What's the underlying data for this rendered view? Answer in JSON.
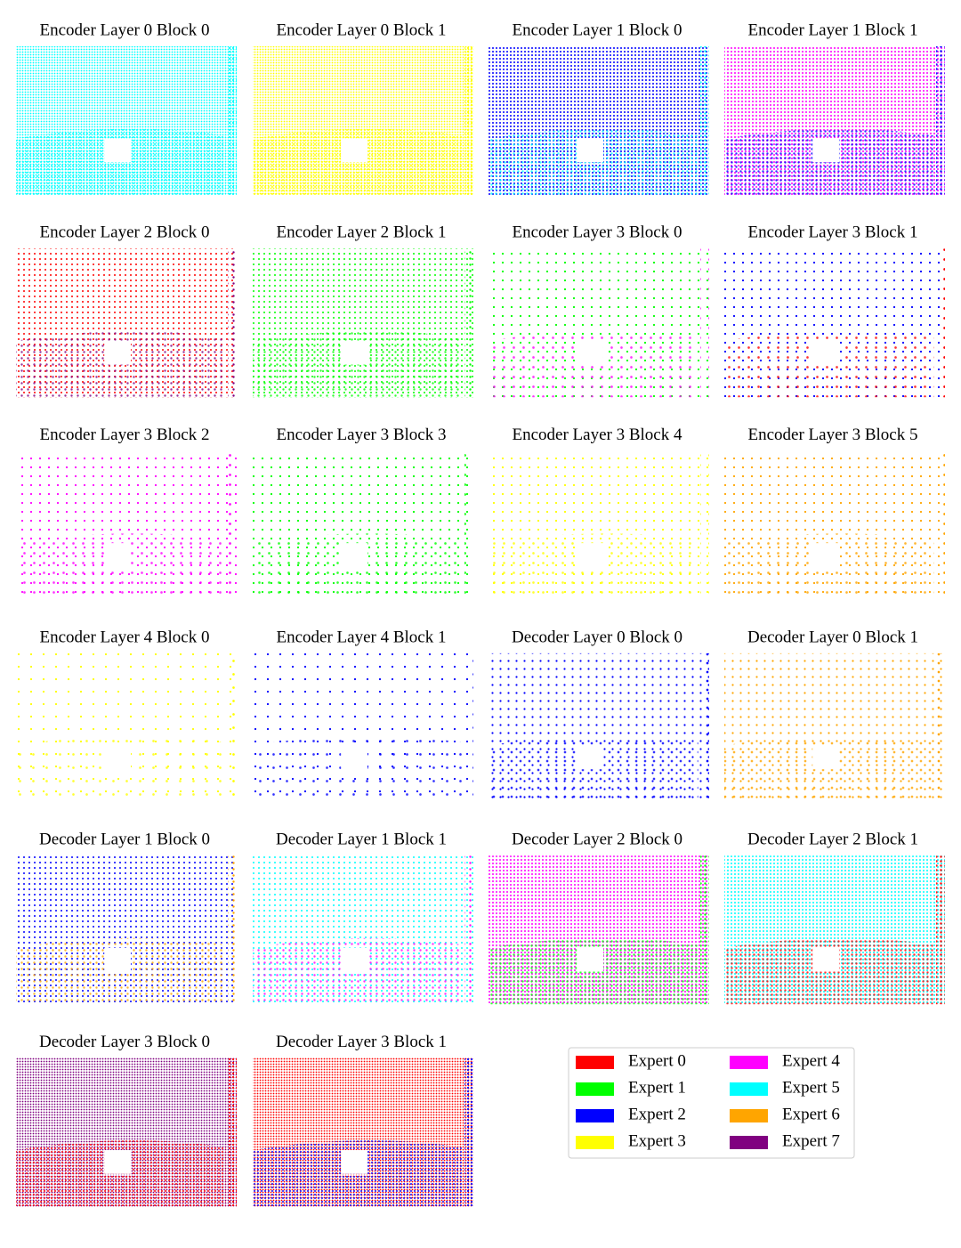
{
  "panels": [
    {
      "title": "Encoder Layer 0 Block 0"
    },
    {
      "title": "Encoder Layer 0 Block 1"
    },
    {
      "title": "Encoder Layer 1 Block 0"
    },
    {
      "title": "Encoder Layer 1 Block 1"
    },
    {
      "title": "Encoder Layer 2 Block 0"
    },
    {
      "title": "Encoder Layer 2 Block 1"
    },
    {
      "title": "Encoder Layer 3 Block 0"
    },
    {
      "title": "Encoder Layer 3 Block 1"
    },
    {
      "title": "Encoder Layer 3 Block 2"
    },
    {
      "title": "Encoder Layer 3 Block 3"
    },
    {
      "title": "Encoder Layer 3 Block 4"
    },
    {
      "title": "Encoder Layer 3 Block 5"
    },
    {
      "title": "Encoder Layer 4 Block 0"
    },
    {
      "title": "Encoder Layer 4 Block 1"
    },
    {
      "title": "Decoder Layer 0 Block 0"
    },
    {
      "title": "Decoder Layer 0 Block 1"
    },
    {
      "title": "Decoder Layer 1 Block 0"
    },
    {
      "title": "Decoder Layer 1 Block 1"
    },
    {
      "title": "Decoder Layer 2 Block 0"
    },
    {
      "title": "Decoder Layer 2 Block 1"
    },
    {
      "title": "Decoder Layer 3 Block 0"
    },
    {
      "title": "Decoder Layer 3 Block 1"
    }
  ],
  "legend": {
    "items": [
      {
        "label": "Expert 0",
        "color": "#ff0000"
      },
      {
        "label": "Expert 1",
        "color": "#00ff00"
      },
      {
        "label": "Expert 2",
        "color": "#0000ff"
      },
      {
        "label": "Expert 3",
        "color": "#ffff00"
      },
      {
        "label": "Expert 4",
        "color": "#ff00ff"
      },
      {
        "label": "Expert 5",
        "color": "#00ffff"
      },
      {
        "label": "Expert 6",
        "color": "#ffa500"
      },
      {
        "label": "Expert 7",
        "color": "#800080"
      }
    ]
  }
}
